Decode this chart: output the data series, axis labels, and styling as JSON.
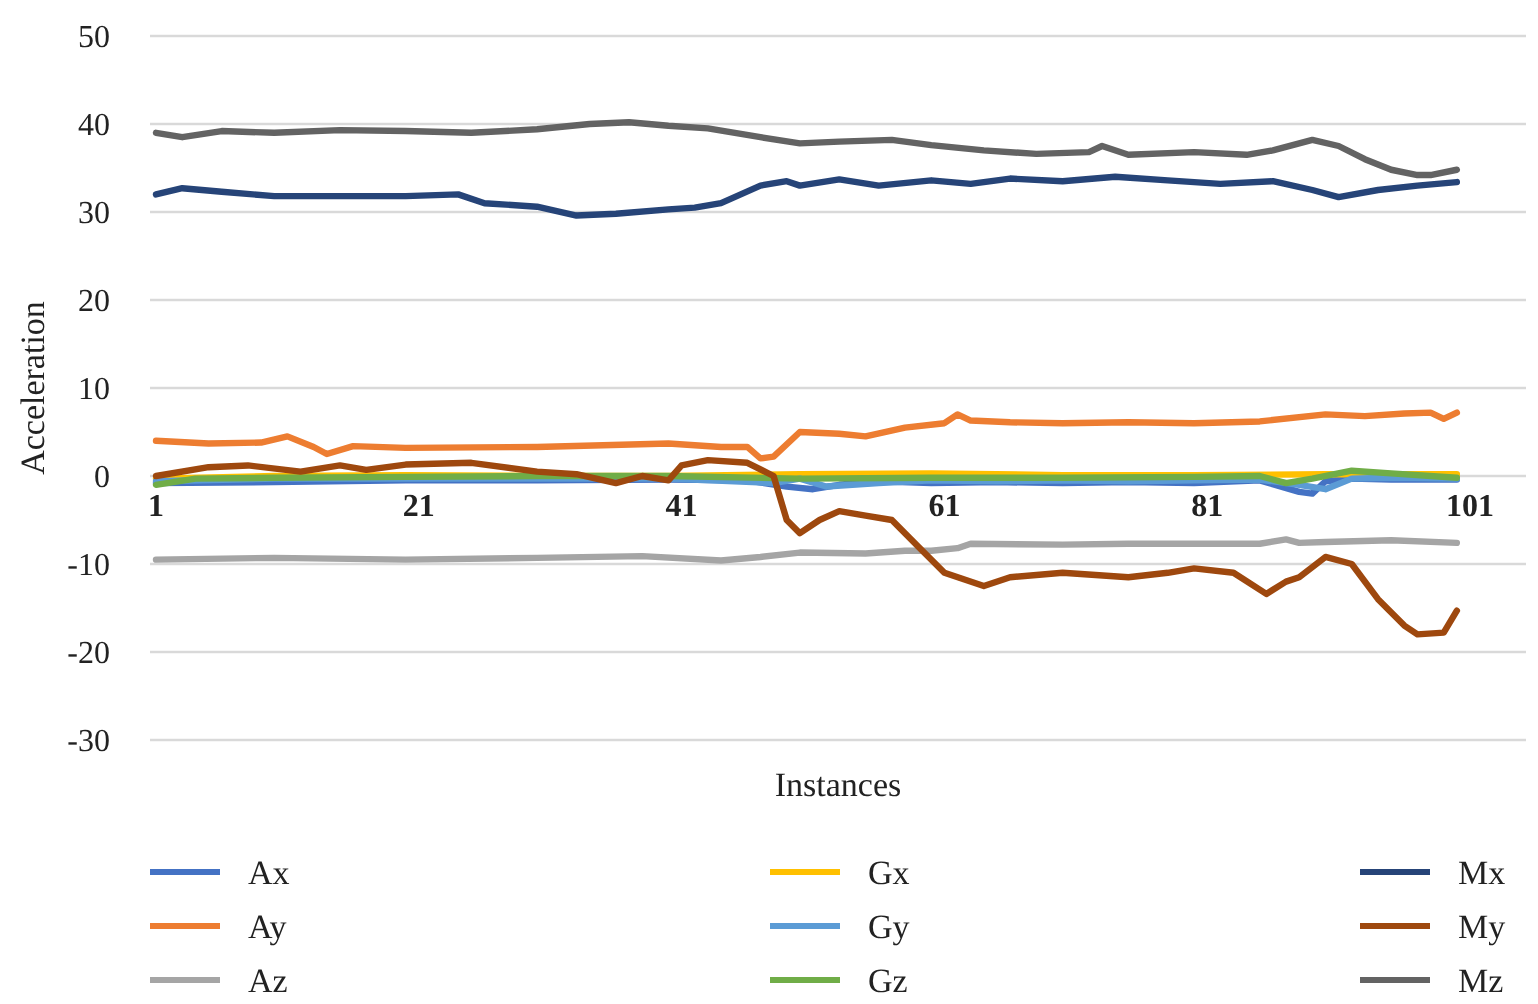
{
  "chart_data": {
    "type": "line",
    "xlabel": "Instances",
    "ylabel": "Acceleration",
    "xlim": [
      1,
      101
    ],
    "xticks": [
      1,
      21,
      41,
      61,
      81,
      101
    ],
    "ylim": [
      -30,
      50
    ],
    "yticks": [
      -30,
      -20,
      -10,
      0,
      10,
      20,
      30,
      40,
      50
    ],
    "grid": "y",
    "legend": "bottom",
    "line_style": "solid",
    "series": [
      {
        "name": "Ax",
        "color": "#4472c4",
        "x": [
          1,
          10,
          20,
          30,
          40,
          46,
          49,
          51,
          53,
          56,
          60,
          65,
          70,
          75,
          80,
          85,
          88,
          89,
          90,
          92,
          95,
          100
        ],
        "values": [
          -0.8,
          -0.7,
          -0.5,
          -0.5,
          -0.4,
          -0.5,
          -1.2,
          -1.5,
          -1,
          -0.6,
          -0.8,
          -0.7,
          -0.8,
          -0.7,
          -0.8,
          -0.5,
          -1.8,
          -2,
          -0.6,
          -0.3,
          -0.4,
          -0.4
        ]
      },
      {
        "name": "Ay",
        "color": "#ed7d31",
        "x": [
          1,
          5,
          9,
          11,
          13,
          14,
          16,
          20,
          30,
          40,
          44,
          46,
          47,
          48,
          50,
          53,
          55,
          58,
          61,
          62,
          63,
          66,
          70,
          75,
          80,
          85,
          90,
          93,
          96,
          98,
          99,
          100
        ],
        "values": [
          4,
          3.7,
          3.8,
          4.5,
          3.3,
          2.5,
          3.4,
          3.2,
          3.3,
          3.7,
          3.3,
          3.3,
          2,
          2.2,
          5,
          4.8,
          4.5,
          5.5,
          6,
          7,
          6.3,
          6.1,
          6,
          6.1,
          6,
          6.2,
          7,
          6.8,
          7.1,
          7.2,
          6.5,
          7.2
        ]
      },
      {
        "name": "Az",
        "color": "#a5a5a5",
        "x": [
          1,
          10,
          20,
          30,
          38,
          44,
          47,
          50,
          55,
          58,
          60,
          62,
          63,
          70,
          75,
          80,
          85,
          87,
          88,
          90,
          95,
          100
        ],
        "values": [
          -9.5,
          -9.3,
          -9.5,
          -9.3,
          -9.1,
          -9.6,
          -9.2,
          -8.7,
          -8.8,
          -8.5,
          -8.5,
          -8.2,
          -7.7,
          -7.8,
          -7.7,
          -7.7,
          -7.7,
          -7.2,
          -7.6,
          -7.5,
          -7.3,
          -7.6
        ]
      },
      {
        "name": "Gx",
        "color": "#ffc000",
        "x": [
          1,
          10,
          20,
          30,
          40,
          50,
          60,
          70,
          80,
          90,
          100
        ],
        "values": [
          -0.3,
          0,
          0.1,
          0,
          0,
          0.2,
          0.3,
          0.1,
          0.1,
          0.2,
          0.2
        ]
      },
      {
        "name": "Gy",
        "color": "#5b9bd5",
        "x": [
          1,
          10,
          20,
          30,
          40,
          48,
          50,
          52,
          56,
          60,
          65,
          70,
          75,
          80,
          85,
          88,
          90,
          92,
          95,
          100
        ],
        "values": [
          -0.6,
          -0.3,
          -0.3,
          -0.3,
          -0.3,
          -0.8,
          -0.3,
          -1.2,
          -0.8,
          -0.5,
          -0.6,
          -0.5,
          -0.6,
          -0.5,
          -0.4,
          -1,
          -1.5,
          -0.3,
          -0.2,
          -0.3
        ]
      },
      {
        "name": "Gz",
        "color": "#70ad47",
        "x": [
          1,
          4,
          10,
          20,
          30,
          40,
          50,
          60,
          70,
          80,
          85,
          87,
          89,
          92,
          95,
          100
        ],
        "values": [
          -1,
          -0.3,
          -0.2,
          -0.1,
          0,
          0,
          -0.3,
          -0.2,
          -0.2,
          -0.1,
          0,
          -0.8,
          -0.3,
          0.6,
          0.3,
          -0.2
        ]
      },
      {
        "name": "Mx",
        "color": "#264478",
        "x": [
          1,
          3,
          6,
          10,
          15,
          20,
          24,
          26,
          30,
          33,
          36,
          40,
          42,
          44,
          47,
          49,
          50,
          53,
          56,
          60,
          63,
          66,
          70,
          74,
          78,
          82,
          86,
          89,
          91,
          94,
          97,
          100
        ],
        "values": [
          32,
          32.7,
          32.3,
          31.8,
          31.8,
          31.8,
          32,
          31,
          30.6,
          29.6,
          29.8,
          30.3,
          30.5,
          31,
          33,
          33.5,
          33,
          33.7,
          33,
          33.6,
          33.2,
          33.8,
          33.5,
          34,
          33.6,
          33.2,
          33.5,
          32.5,
          31.7,
          32.5,
          33,
          33.4
        ]
      },
      {
        "name": "My",
        "color": "#9e480e",
        "x": [
          1,
          5,
          8,
          12,
          15,
          17,
          20,
          25,
          30,
          33,
          36,
          38,
          40,
          41,
          43,
          46,
          48,
          49,
          50,
          51.5,
          53,
          55,
          57,
          59,
          61,
          64,
          66,
          70,
          75,
          78,
          80,
          83,
          85.5,
          87,
          88,
          90,
          92,
          94,
          96,
          97,
          99,
          100
        ],
        "values": [
          0,
          1,
          1.2,
          0.5,
          1.2,
          0.7,
          1.3,
          1.5,
          0.5,
          0.2,
          -0.8,
          0,
          -0.5,
          1.2,
          1.8,
          1.5,
          0,
          -5,
          -6.5,
          -5,
          -4,
          -4.5,
          -5,
          -8,
          -11,
          -12.5,
          -11.5,
          -11,
          -11.5,
          -11,
          -10.5,
          -11,
          -13.4,
          -12,
          -11.5,
          -9.2,
          -10,
          -14,
          -17,
          -18,
          -17.8,
          -15.3
        ]
      },
      {
        "name": "Mz",
        "color": "#636363",
        "x": [
          1,
          3,
          6,
          10,
          15,
          20,
          25,
          30,
          34,
          37,
          40,
          43,
          47,
          50,
          53,
          57,
          60,
          64,
          68,
          72,
          73,
          75,
          80,
          84,
          86,
          89,
          91,
          93,
          95,
          97,
          98,
          100
        ],
        "values": [
          39,
          38.5,
          39.2,
          39,
          39.3,
          39.2,
          39,
          39.4,
          40,
          40.2,
          39.8,
          39.5,
          38.5,
          37.8,
          38,
          38.2,
          37.6,
          37,
          36.6,
          36.8,
          37.5,
          36.5,
          36.8,
          36.5,
          37,
          38.2,
          37.5,
          36,
          34.8,
          34.2,
          34.2,
          34.8
        ]
      }
    ]
  }
}
